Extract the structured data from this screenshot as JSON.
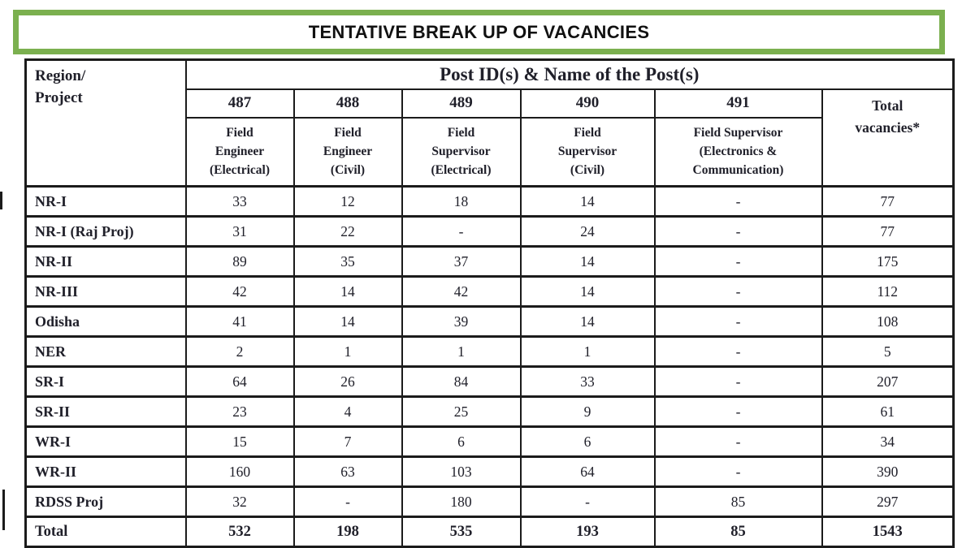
{
  "title": "TENTATIVE BREAK UP OF VACANCIES",
  "colors": {
    "accent_green": "#7bb04f",
    "border_black": "#1b1b1b",
    "text_dark": "#20202a",
    "background": "#ffffff"
  },
  "table": {
    "corner_header": "Region/\nProject",
    "group_header": "Post ID(s) & Name of the Post(s)",
    "total_header": "Total\nvacancies*",
    "post_ids": [
      "487",
      "488",
      "489",
      "490",
      "491"
    ],
    "post_names": [
      "Field\nEngineer\n(Electrical)",
      "Field\nEngineer\n(Civil)",
      "Field\nSupervisor\n(Electrical)",
      "Field\nSupervisor\n(Civil)",
      "Field Supervisor\n(Electronics &\nCommunication)"
    ],
    "rows": [
      {
        "region": "NR-I",
        "values": [
          "33",
          "12",
          "18",
          "14",
          "-",
          "77"
        ],
        "is_total": false
      },
      {
        "region": "NR-I (Raj Proj)",
        "values": [
          "31",
          "22",
          "-",
          "24",
          "-",
          "77"
        ],
        "is_total": false
      },
      {
        "region": "NR-II",
        "values": [
          "89",
          "35",
          "37",
          "14",
          "-",
          "175"
        ],
        "is_total": false
      },
      {
        "region": "NR-III",
        "values": [
          "42",
          "14",
          "42",
          "14",
          "-",
          "112"
        ],
        "is_total": false
      },
      {
        "region": "Odisha",
        "values": [
          "41",
          "14",
          "39",
          "14",
          "-",
          "108"
        ],
        "is_total": false
      },
      {
        "region": "NER",
        "values": [
          "2",
          "1",
          "1",
          "1",
          "-",
          "5"
        ],
        "is_total": false
      },
      {
        "region": "SR-I",
        "values": [
          "64",
          "26",
          "84",
          "33",
          "-",
          "207"
        ],
        "is_total": false
      },
      {
        "region": "SR-II",
        "values": [
          "23",
          "4",
          "25",
          "9",
          "-",
          "61"
        ],
        "is_total": false
      },
      {
        "region": "WR-I",
        "values": [
          "15",
          "7",
          "6",
          "6",
          "-",
          "34"
        ],
        "is_total": false
      },
      {
        "region": "WR-II",
        "values": [
          "160",
          "63",
          "103",
          "64",
          "-",
          "390"
        ],
        "is_total": false
      },
      {
        "region": "RDSS Proj",
        "values": [
          "32",
          "-",
          "180",
          "-",
          "85",
          "297"
        ],
        "is_total": false
      },
      {
        "region": "Total",
        "values": [
          "532",
          "198",
          "535",
          "193",
          "85",
          "1543"
        ],
        "is_total": true
      }
    ]
  }
}
